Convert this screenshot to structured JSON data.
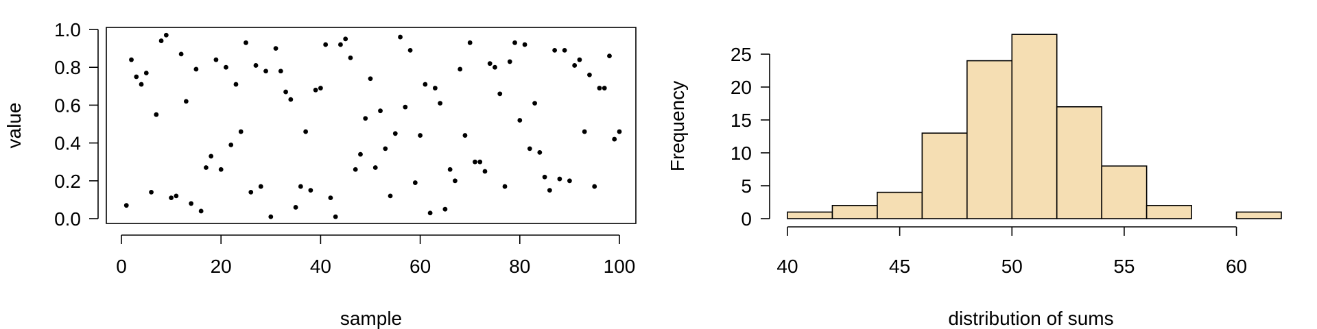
{
  "chart_data": [
    {
      "type": "scatter",
      "title": "",
      "xlabel": "sample",
      "ylabel": "value",
      "xlim": [
        0,
        100
      ],
      "ylim": [
        0,
        1
      ],
      "xticks": [
        "0",
        "20",
        "40",
        "60",
        "80",
        "100"
      ],
      "yticks": [
        "0.0",
        "0.2",
        "0.4",
        "0.6",
        "0.8",
        "1.0"
      ],
      "point_color": "#000000",
      "x": [
        1,
        2,
        3,
        4,
        5,
        6,
        7,
        8,
        9,
        10,
        11,
        12,
        13,
        14,
        15,
        16,
        17,
        18,
        19,
        20,
        21,
        22,
        23,
        24,
        25,
        26,
        27,
        28,
        29,
        30,
        31,
        32,
        33,
        34,
        35,
        36,
        37,
        38,
        39,
        40,
        41,
        42,
        43,
        44,
        45,
        46,
        47,
        48,
        49,
        50,
        51,
        52,
        53,
        54,
        55,
        56,
        57,
        58,
        59,
        60,
        61,
        62,
        63,
        64,
        65,
        66,
        67,
        68,
        69,
        70,
        71,
        72,
        73,
        74,
        75,
        76,
        77,
        78,
        79,
        80,
        81,
        82,
        83,
        84,
        85,
        86,
        87,
        88,
        89,
        90,
        91,
        92,
        93,
        94,
        95,
        96,
        97,
        98,
        99,
        100
      ],
      "y": [
        0.07,
        0.84,
        0.75,
        0.71,
        0.77,
        0.14,
        0.55,
        0.94,
        0.97,
        0.11,
        0.12,
        0.87,
        0.62,
        0.08,
        0.79,
        0.04,
        0.27,
        0.33,
        0.84,
        0.26,
        0.8,
        0.39,
        0.71,
        0.46,
        0.93,
        0.14,
        0.81,
        0.17,
        0.78,
        0.01,
        0.9,
        0.78,
        0.67,
        0.63,
        0.06,
        0.17,
        0.46,
        0.15,
        0.68,
        0.69,
        0.92,
        0.11,
        0.01,
        0.92,
        0.95,
        0.85,
        0.26,
        0.34,
        0.53,
        0.74,
        0.27,
        0.57,
        0.37,
        0.12,
        0.45,
        0.96,
        0.59,
        0.89,
        0.19,
        0.44,
        0.71,
        0.03,
        0.69,
        0.61,
        0.05,
        0.26,
        0.2,
        0.79,
        0.44,
        0.93,
        0.3,
        0.3,
        0.25,
        0.82,
        0.8,
        0.66,
        0.17,
        0.83,
        0.93,
        0.52,
        0.92,
        0.37,
        0.61,
        0.35,
        0.22,
        0.15,
        0.89,
        0.21,
        0.89,
        0.2,
        0.81,
        0.84,
        0.46,
        0.76,
        0.17,
        0.69,
        0.69,
        0.86,
        0.42,
        0.46
      ]
    },
    {
      "type": "bar",
      "subtype": "histogram",
      "title": "",
      "xlabel": "distribution of sums",
      "ylabel": "Frequency",
      "xlim": [
        40,
        62
      ],
      "ylim": [
        0,
        28
      ],
      "xticks": [
        "40",
        "45",
        "50",
        "55",
        "60"
      ],
      "yticks": [
        "0",
        "5",
        "10",
        "15",
        "20",
        "25"
      ],
      "bar_color": "#f5deb3",
      "bins": [
        [
          40,
          42
        ],
        [
          42,
          44
        ],
        [
          44,
          46
        ],
        [
          46,
          48
        ],
        [
          48,
          50
        ],
        [
          50,
          52
        ],
        [
          52,
          54
        ],
        [
          54,
          56
        ],
        [
          56,
          58
        ],
        [
          58,
          60
        ],
        [
          60,
          62
        ]
      ],
      "values": [
        1,
        2,
        4,
        13,
        24,
        28,
        17,
        8,
        2,
        0,
        1
      ]
    }
  ]
}
